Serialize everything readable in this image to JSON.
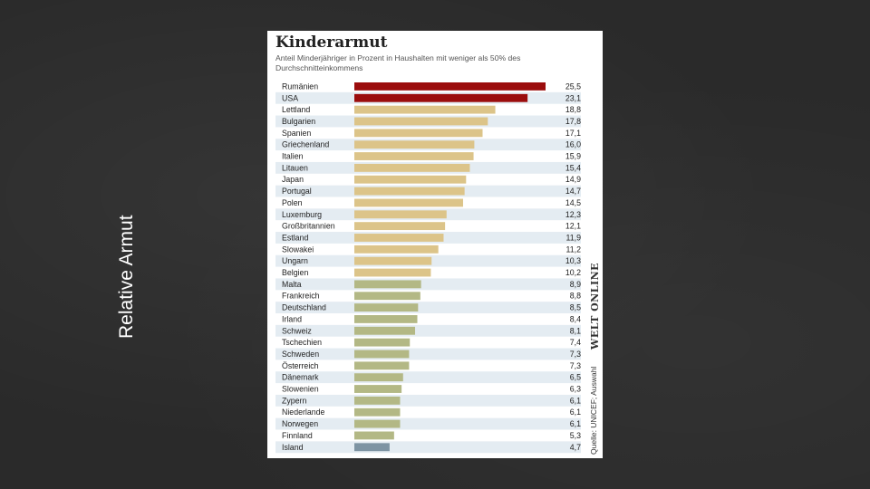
{
  "slide": {
    "title": "Relative Armut"
  },
  "chart_data": {
    "type": "bar",
    "orientation": "horizontal",
    "title": "Kinderarmut",
    "subtitle": "Anteil Minderjähriger in Prozent in Haushalten mit weniger als 50% des Durchschnitteinkommens",
    "categories": [
      "Rumänien",
      "USA",
      "Lettland",
      "Bulgarien",
      "Spanien",
      "Griechenland",
      "Italien",
      "Litauen",
      "Japan",
      "Portugal",
      "Polen",
      "Luxemburg",
      "Großbritannien",
      "Estland",
      "Slowakei",
      "Ungarn",
      "Belgien",
      "Malta",
      "Frankreich",
      "Deutschland",
      "Irland",
      "Schweiz",
      "Tschechien",
      "Schweden",
      "Österreich",
      "Dänemark",
      "Slowenien",
      "Zypern",
      "Niederlande",
      "Norwegen",
      "Finnland",
      "Island"
    ],
    "values": [
      25.5,
      23.1,
      18.8,
      17.8,
      17.1,
      16.0,
      15.9,
      15.4,
      14.9,
      14.7,
      14.5,
      12.3,
      12.1,
      11.9,
      11.2,
      10.3,
      10.2,
      8.9,
      8.8,
      8.5,
      8.4,
      8.1,
      7.4,
      7.3,
      7.3,
      6.5,
      6.3,
      6.1,
      6.1,
      6.1,
      5.3,
      4.7
    ],
    "value_labels": [
      "25,5",
      "23,1",
      "18,8",
      "17,8",
      "17,1",
      "16,0",
      "15,9",
      "15,4",
      "14,9",
      "14,7",
      "14,5",
      "12,3",
      "12,1",
      "11,9",
      "11,2",
      "10,3",
      "10,2",
      "8,9",
      "8,8",
      "8,5",
      "8,4",
      "8,1",
      "7,4",
      "7,3",
      "7,3",
      "6,5",
      "6,3",
      "6,1",
      "6,1",
      "6,1",
      "5,3",
      "4,7"
    ],
    "color_groups": [
      "red",
      "red",
      "tan",
      "tan",
      "tan",
      "tan",
      "tan",
      "tan",
      "tan",
      "tan",
      "tan",
      "tan",
      "tan",
      "tan",
      "tan",
      "tan",
      "tan",
      "olive",
      "olive",
      "olive",
      "olive",
      "olive",
      "olive",
      "olive",
      "olive",
      "olive",
      "olive",
      "olive",
      "olive",
      "olive",
      "olive",
      "gray"
    ],
    "xlim": [
      0,
      25.5
    ],
    "xlabel": "",
    "ylabel": "",
    "brand": "WELT ONLINE",
    "source": "Quelle: UNICEF; Auswahl"
  },
  "colors": {
    "red": "#9b0d0d",
    "tan": "#dcc489",
    "olive": "#b3b885",
    "gray": "#7e94a3",
    "row_stripe": "#e4ecf2"
  }
}
